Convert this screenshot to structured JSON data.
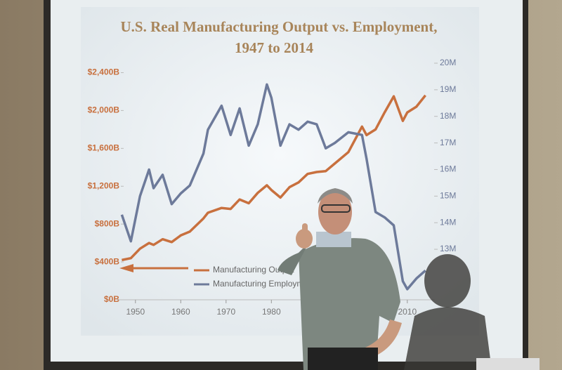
{
  "chart_data": {
    "type": "line",
    "title": "U.S. Real Manufacturing Output vs. Employment,",
    "subtitle": "1947 to 2014",
    "x": [
      1947,
      1949,
      1951,
      1953,
      1954,
      1956,
      1958,
      1960,
      1962,
      1965,
      1966,
      1969,
      1971,
      1973,
      1975,
      1977,
      1979,
      1980,
      1982,
      1984,
      1986,
      1988,
      1990,
      1992,
      1994,
      1997,
      2000,
      2001,
      2003,
      2005,
      2007,
      2009,
      2010,
      2012,
      2014
    ],
    "xlim": [
      1946,
      2016
    ],
    "xticks": [
      1950,
      1960,
      1970,
      1980,
      2010
    ],
    "ylim": [
      0,
      2500
    ],
    "yticks": [
      {
        "value": 0,
        "label": "$0B"
      },
      {
        "value": 400,
        "label": "$400B"
      },
      {
        "value": 800,
        "label": "$800B"
      },
      {
        "value": 1200,
        "label": "$1,200B"
      },
      {
        "value": 1600,
        "label": "$1,600B"
      },
      {
        "value": 2000,
        "label": "$2,000B"
      },
      {
        "value": 2400,
        "label": "$2,400B"
      }
    ],
    "y2lim": [
      11.1,
      20
    ],
    "y2ticks": [
      {
        "value": 13,
        "label": "13M"
      },
      {
        "value": 14,
        "label": "14M"
      },
      {
        "value": 15,
        "label": "15M"
      },
      {
        "value": 16,
        "label": "16M"
      },
      {
        "value": 17,
        "label": "17M"
      },
      {
        "value": 18,
        "label": "18M"
      },
      {
        "value": 19,
        "label": "19M"
      },
      {
        "value": 20,
        "label": "20M"
      }
    ],
    "legend": "lower left",
    "series": [
      {
        "name": "Manufacturing Output",
        "color": "#c8703e",
        "values": [
          420,
          440,
          540,
          600,
          580,
          640,
          610,
          680,
          720,
          860,
          920,
          970,
          960,
          1060,
          1020,
          1130,
          1210,
          1160,
          1080,
          1190,
          1240,
          1330,
          1350,
          1360,
          1440,
          1560,
          1830,
          1740,
          1800,
          1980,
          2150,
          1890,
          1980,
          2040,
          2160
        ]
      },
      {
        "name": "Manufacturing Employment",
        "color": "#6d7a9a",
        "axis": "y2",
        "values": [
          14.3,
          13.3,
          15.0,
          16.0,
          15.3,
          15.8,
          14.7,
          15.1,
          15.4,
          16.6,
          17.5,
          18.4,
          17.3,
          18.3,
          16.9,
          17.7,
          19.2,
          18.7,
          16.9,
          17.7,
          17.5,
          17.8,
          17.7,
          16.8,
          17.0,
          17.4,
          17.3,
          16.4,
          14.4,
          14.2,
          13.9,
          11.8,
          11.5,
          11.9,
          12.2
        ]
      }
    ]
  }
}
